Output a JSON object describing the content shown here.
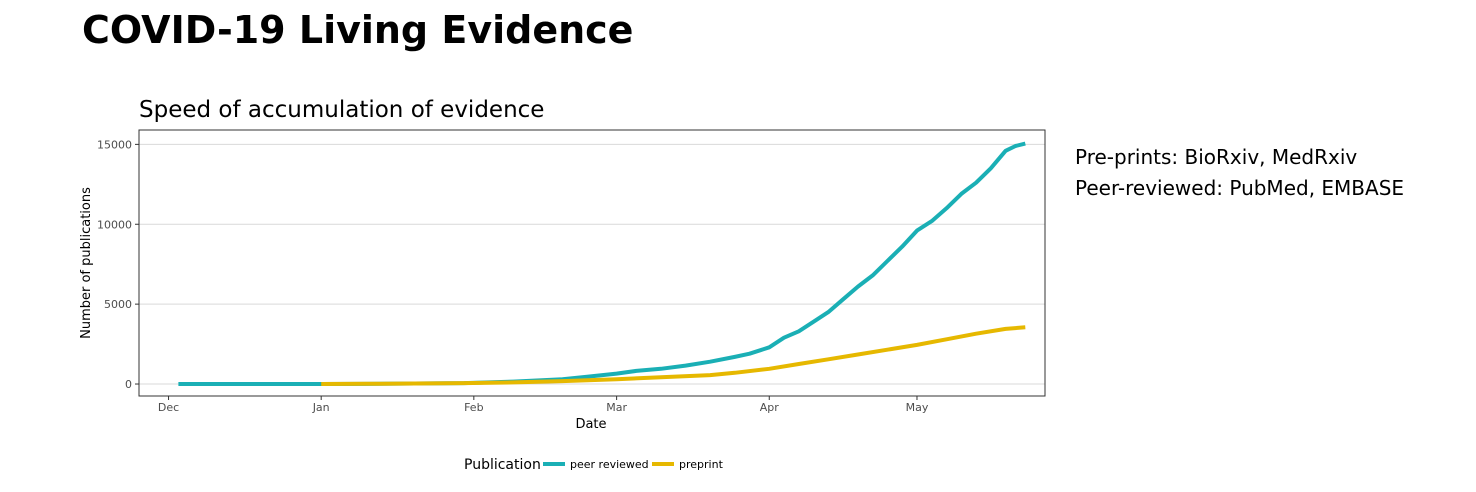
{
  "page": {
    "title": "COVID-19 Living Evidence"
  },
  "sources": {
    "preprints": "Pre-prints: BioRxiv, MedRxiv",
    "peer_reviewed": "Peer-reviewed: PubMed, EMBASE"
  },
  "chart_data": {
    "type": "line",
    "title": "Speed of accumulation of evidence",
    "xlabel": "Date",
    "ylabel": "Number of publications",
    "x_ticks": [
      {
        "label": "Dec",
        "day": 0
      },
      {
        "label": "Jan",
        "day": 31
      },
      {
        "label": "Feb",
        "day": 62
      },
      {
        "label": "Mar",
        "day": 91
      },
      {
        "label": "Apr",
        "day": 122
      },
      {
        "label": "May",
        "day": 152
      }
    ],
    "xlim": [
      -6,
      178
    ],
    "ylim": [
      -750,
      15900
    ],
    "y_ticks": [
      0,
      5000,
      10000,
      15000
    ],
    "grid": true,
    "legend": {
      "title": "Publication",
      "position": "bottom",
      "entries": [
        {
          "name": "peer reviewed",
          "color": "#1aafb5"
        },
        {
          "name": "preprint",
          "color": "#e6b800"
        }
      ]
    },
    "series": [
      {
        "name": "peer reviewed",
        "color": "#1aafb5",
        "x": [
          2,
          10,
          20,
          31,
          40,
          50,
          60,
          70,
          80,
          85,
          91,
          95,
          100,
          105,
          110,
          115,
          118,
          122,
          125,
          128,
          131,
          134,
          137,
          140,
          143,
          146,
          149,
          152,
          155,
          158,
          161,
          164,
          167,
          170,
          172,
          174
        ],
        "y": [
          0,
          0,
          0,
          0,
          10,
          30,
          60,
          150,
          300,
          450,
          650,
          820,
          950,
          1150,
          1400,
          1700,
          1900,
          2300,
          2900,
          3300,
          3900,
          4500,
          5300,
          6100,
          6800,
          7700,
          8600,
          9600,
          10200,
          11000,
          11900,
          12600,
          13500,
          14600,
          14900,
          15050
        ]
      },
      {
        "name": "preprint",
        "color": "#e6b800",
        "x": [
          31,
          40,
          50,
          60,
          70,
          80,
          91,
          100,
          110,
          115,
          122,
          128,
          134,
          140,
          146,
          152,
          158,
          164,
          170,
          174
        ],
        "y": [
          0,
          15,
          35,
          60,
          100,
          180,
          300,
          420,
          560,
          700,
          950,
          1250,
          1550,
          1850,
          2150,
          2450,
          2800,
          3150,
          3450,
          3550
        ]
      }
    ]
  }
}
